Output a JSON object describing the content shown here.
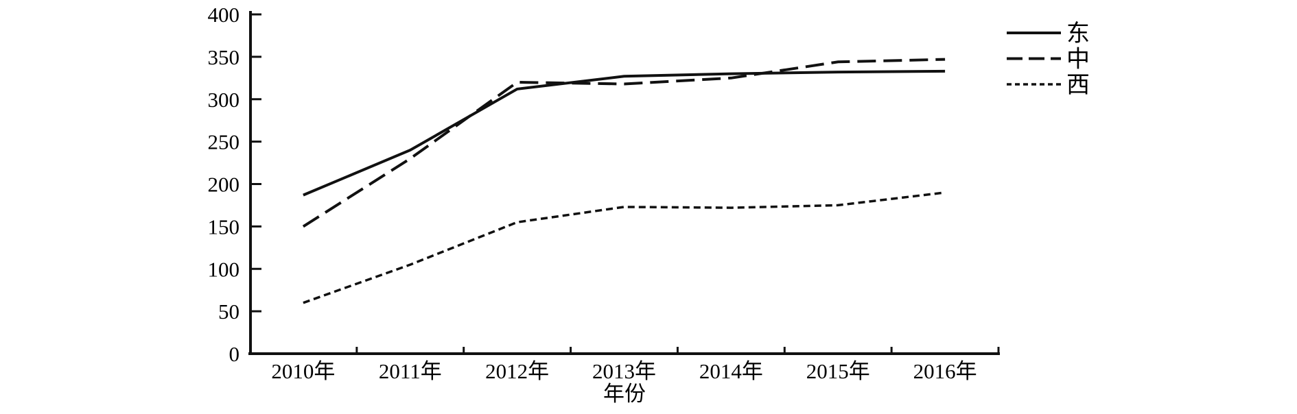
{
  "chart_data": {
    "type": "line",
    "title": "",
    "xlabel": "年份",
    "ylabel": "",
    "categories": [
      "2010年",
      "2011年",
      "2012年",
      "2013年",
      "2014年",
      "2015年",
      "2016年"
    ],
    "series": [
      {
        "name": "东",
        "line_style": "solid",
        "values": [
          187,
          240,
          312,
          327,
          330,
          332,
          333
        ]
      },
      {
        "name": "中",
        "line_style": "long-dash",
        "values": [
          150,
          230,
          320,
          318,
          325,
          344,
          347
        ]
      },
      {
        "name": "西",
        "line_style": "short-dash",
        "values": [
          60,
          105,
          155,
          173,
          172,
          175,
          190
        ]
      }
    ],
    "ylim": [
      0,
      400
    ],
    "yticks": [
      0,
      50,
      100,
      150,
      200,
      250,
      300,
      350,
      400
    ],
    "legend_position": "top-right",
    "grid": false,
    "line_color": "#111111",
    "background": "#ffffff"
  }
}
